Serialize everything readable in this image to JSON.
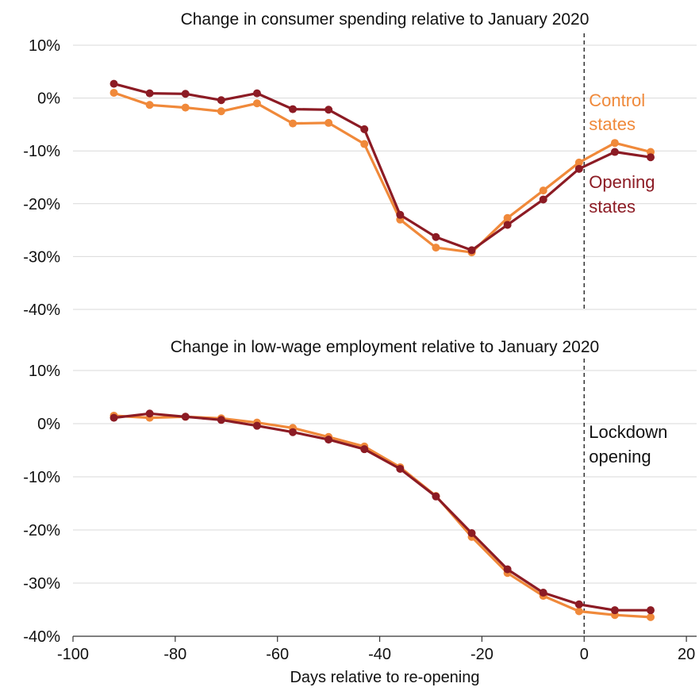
{
  "colors": {
    "control": "#f0893a",
    "opening": "#8c1b24",
    "grid": "#d9d9d9"
  },
  "chart_data": [
    {
      "type": "line",
      "title": "Change in consumer spending relative to January 2020",
      "ylim": [
        -40,
        10
      ],
      "yticks": [
        10,
        0,
        -10,
        -20,
        -30,
        -40
      ],
      "ytick_labels": [
        "10%",
        "0%",
        "-10%",
        "-20%",
        "-30%",
        "-40%"
      ],
      "xlim": [
        -100,
        22
      ],
      "x": [
        -92,
        -85,
        -78,
        -71,
        -64,
        -57,
        -50,
        -43,
        -36,
        -29,
        -22,
        -15,
        -8,
        -1,
        6,
        13
      ],
      "series": [
        {
          "key": "control",
          "label_lines": [
            "Control",
            "states"
          ],
          "values": [
            1.0,
            -1.3,
            -1.8,
            -2.5,
            -1.0,
            -4.8,
            -4.7,
            -8.7,
            -23.0,
            -28.3,
            -29.2,
            -22.7,
            -17.5,
            -12.2,
            -8.5,
            -10.2
          ]
        },
        {
          "key": "opening",
          "label_lines": [
            "Opening",
            "states"
          ],
          "values": [
            2.7,
            0.9,
            0.8,
            -0.4,
            0.9,
            -2.1,
            -2.2,
            -5.9,
            -22.1,
            -26.3,
            -28.8,
            -24.0,
            -19.2,
            -13.4,
            -10.2,
            -11.2
          ]
        }
      ],
      "vline_x": 0
    },
    {
      "type": "line",
      "title": "Change in low-wage employment relative to January 2020",
      "ylim": [
        -40,
        10
      ],
      "yticks": [
        10,
        0,
        -10,
        -20,
        -30,
        -40
      ],
      "ytick_labels": [
        "10%",
        "0%",
        "-10%",
        "-20%",
        "-30%",
        "-40%"
      ],
      "xlim": [
        -100,
        22
      ],
      "xticks": [
        -100,
        -80,
        -60,
        -40,
        -20,
        0,
        20
      ],
      "xtick_labels": [
        "-100",
        "-80",
        "-60",
        "-40",
        "-20",
        "0",
        "20"
      ],
      "xlabel": "Days relative to re-opening",
      "x": [
        -92,
        -85,
        -78,
        -71,
        -64,
        -57,
        -50,
        -43,
        -36,
        -29,
        -22,
        -15,
        -8,
        -1,
        6,
        13
      ],
      "series": [
        {
          "key": "control",
          "values": [
            1.5,
            1.1,
            1.3,
            1.0,
            0.2,
            -0.8,
            -2.5,
            -4.3,
            -8.2,
            -13.6,
            -21.3,
            -28.1,
            -32.4,
            -35.3,
            -36.0,
            -36.4
          ]
        },
        {
          "key": "opening",
          "values": [
            1.1,
            1.9,
            1.3,
            0.7,
            -0.4,
            -1.6,
            -3.0,
            -4.8,
            -8.5,
            -13.7,
            -20.6,
            -27.4,
            -31.8,
            -34.0,
            -35.1,
            -35.1
          ]
        }
      ],
      "vline_x": 0,
      "annotation_lines": [
        "Lockdown",
        "opening"
      ]
    }
  ]
}
